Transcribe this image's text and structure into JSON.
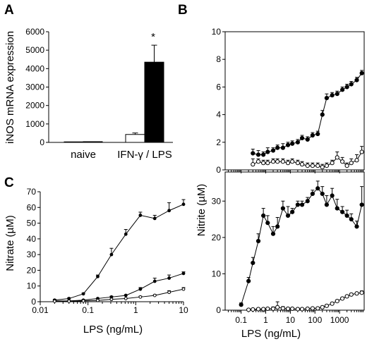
{
  "chart_data": [
    {
      "panel": "A",
      "type": "bar",
      "ylabel": "iNOS mRNA expression",
      "ylim": [
        0,
        6000
      ],
      "yticks": [
        0,
        1000,
        2000,
        3000,
        4000,
        5000,
        6000
      ],
      "categories": [
        "naive",
        "IFN-γ / LPS"
      ],
      "series": [
        {
          "fill": "white",
          "values": [
            30,
            430
          ],
          "errors": [
            0,
            80
          ]
        },
        {
          "fill": "black",
          "values": [
            40,
            4350
          ],
          "errors": [
            0,
            920
          ]
        }
      ],
      "annotation": "*"
    },
    {
      "panel": "B",
      "type": "line",
      "ylabel": "Nitrite (µM)",
      "xlabel": "LPS (ng/mL)",
      "xscale": "log",
      "xtick_labels": [
        "0.1",
        "1",
        "10",
        "100",
        "1000"
      ],
      "subplots": [
        {
          "position": "top",
          "ylim": [
            0,
            10
          ],
          "yticks": [
            0,
            2,
            4,
            6,
            8,
            10
          ],
          "series": [
            {
              "marker": "filled",
              "x": [
                0.3,
                0.5,
                0.8,
                1.2,
                2,
                3,
                5,
                8,
                12,
                20,
                30,
                50,
                80,
                130,
                200,
                300,
                500,
                800,
                1300,
                2000,
                3000,
                5000,
                8000
              ],
              "y": [
                1.2,
                1.1,
                1.1,
                1.3,
                1.4,
                1.6,
                1.6,
                1.8,
                1.9,
                2.0,
                2.3,
                2.2,
                2.5,
                2.6,
                4.0,
                5.2,
                5.4,
                5.5,
                5.8,
                6.0,
                6.2,
                6.5,
                7.0
              ],
              "errors": [
                0.3,
                0.3,
                0.2,
                0.3,
                0.2,
                0.2,
                0.3,
                0.2,
                0.2,
                0.2,
                0.2,
                0.2,
                0.2,
                0.2,
                0.3,
                0.3,
                0.2,
                0.2,
                0.2,
                0.2,
                0.2,
                0.2,
                0.2
              ]
            },
            {
              "marker": "open",
              "x": [
                0.3,
                0.5,
                0.8,
                1.2,
                2,
                3,
                5,
                8,
                12,
                20,
                30,
                50,
                80,
                130,
                200,
                300,
                500,
                800,
                1300,
                2000,
                3000,
                5000,
                8000
              ],
              "y": [
                0.4,
                0.6,
                0.5,
                0.5,
                0.6,
                0.6,
                0.6,
                0.5,
                0.6,
                0.5,
                0.4,
                0.3,
                0.3,
                0.3,
                0.2,
                0.3,
                0.5,
                0.9,
                0.6,
                0.3,
                0.5,
                0.7,
                1.3
              ],
              "errors": [
                0.4,
                0.2,
                0.2,
                0.2,
                0.2,
                0.2,
                0.2,
                0.2,
                0.2,
                0.2,
                0.2,
                0.2,
                0.2,
                0.2,
                0.2,
                0.2,
                0.2,
                0.4,
                0.3,
                0.2,
                0.3,
                0.4,
                0.4
              ]
            }
          ]
        },
        {
          "position": "bottom",
          "ylim": [
            0,
            38
          ],
          "yticks": [
            0,
            10,
            20,
            30
          ],
          "series": [
            {
              "marker": "filled",
              "x": [
                0.1,
                0.2,
                0.3,
                0.5,
                0.8,
                1.2,
                2,
                3,
                5,
                8,
                12,
                20,
                30,
                50,
                80,
                130,
                200,
                300,
                500,
                800,
                1300,
                2000,
                3000,
                5000,
                8000
              ],
              "y": [
                1.5,
                8,
                13,
                19,
                26,
                24,
                21,
                23,
                28,
                26,
                27,
                29,
                29,
                30,
                32,
                33.5,
                32,
                29,
                31.5,
                28,
                27,
                26,
                25,
                23,
                29
              ],
              "errors": [
                0.5,
                1,
                1.5,
                2,
                2,
                2,
                2,
                2.5,
                2,
                2.5,
                1,
                1,
                1,
                1,
                1,
                2,
                2,
                2.5,
                2,
                2.5,
                1.5,
                1.5,
                1.5,
                1.5,
                5
              ]
            },
            {
              "marker": "open",
              "x": [
                0.2,
                0.3,
                0.5,
                0.8,
                1.2,
                2,
                3,
                5,
                8,
                12,
                20,
                30,
                50,
                80,
                130,
                200,
                300,
                500,
                800,
                1300,
                2000,
                3000,
                5000,
                8000
              ],
              "y": [
                0.1,
                0.2,
                0.3,
                0.3,
                0.4,
                0.4,
                0.8,
                0.5,
                0.4,
                0.4,
                0.3,
                0.3,
                0.4,
                0.5,
                0.5,
                0.8,
                1.2,
                1.8,
                2.5,
                3.2,
                3.8,
                4.3,
                4.6,
                4.8
              ],
              "errors": [
                0.2,
                0.2,
                0.2,
                0.2,
                0.2,
                0.5,
                1.5,
                0.5,
                0.3,
                0.2,
                0.2,
                0.2,
                0.2,
                0.2,
                0.3,
                0.3,
                0.3,
                0.3,
                0.3,
                0.3,
                0.3,
                0.3,
                0.3,
                0.5
              ]
            }
          ]
        }
      ]
    },
    {
      "panel": "C",
      "type": "line",
      "ylabel": "Nitrate (µM)",
      "xlabel": "LPS (ng/mL)",
      "xscale": "log",
      "xlim": [
        0.01,
        10
      ],
      "xtick_labels": [
        "0.01",
        "0.1",
        "1",
        "10"
      ],
      "ylim": [
        0,
        70
      ],
      "yticks": [
        0,
        10,
        20,
        30,
        40,
        50,
        60,
        70
      ],
      "series": [
        {
          "marker": "filled",
          "x": [
            0.02,
            0.04,
            0.08,
            0.16,
            0.31,
            0.62,
            1.25,
            2.5,
            5,
            10
          ],
          "y": [
            1,
            2,
            5,
            16,
            30,
            43,
            55,
            53,
            58,
            62
          ],
          "errors": [
            0.5,
            0.5,
            0.5,
            1,
            4,
            3,
            2,
            2,
            5,
            3
          ]
        },
        {
          "marker": "filled",
          "x": [
            0.02,
            0.04,
            0.08,
            0.16,
            0.31,
            0.62,
            1.25,
            2.5,
            5,
            10
          ],
          "y": [
            0.5,
            0.5,
            1,
            2,
            3,
            4,
            8,
            13,
            15,
            18
          ],
          "errors": [
            0.3,
            0.3,
            0.3,
            0.3,
            0.5,
            0.5,
            1,
            2,
            2,
            1
          ]
        },
        {
          "marker": "open",
          "x": [
            0.02,
            0.04,
            0.08,
            0.16,
            0.31,
            0.62,
            1.25,
            2.5,
            5,
            10
          ],
          "y": [
            0.3,
            0.3,
            0.5,
            0.8,
            1.5,
            2,
            3,
            4,
            6,
            8
          ],
          "errors": [
            0.2,
            0.2,
            0.2,
            0.2,
            0.3,
            0.3,
            0.5,
            0.5,
            1,
            1
          ]
        }
      ]
    }
  ],
  "labels": {
    "panel_a": "A",
    "panel_b": "B",
    "panel_c": "C",
    "a_ylabel": "iNOS mRNA expression",
    "a_cat1": "naive",
    "a_cat2": "IFN-γ / LPS",
    "a_star": "*",
    "b_ylabel": "Nitrite (µM)",
    "b_xlabel": "LPS (ng/mL)",
    "c_ylabel": "Nitrate (µM)",
    "c_xlabel": "LPS (ng/mL)"
  }
}
